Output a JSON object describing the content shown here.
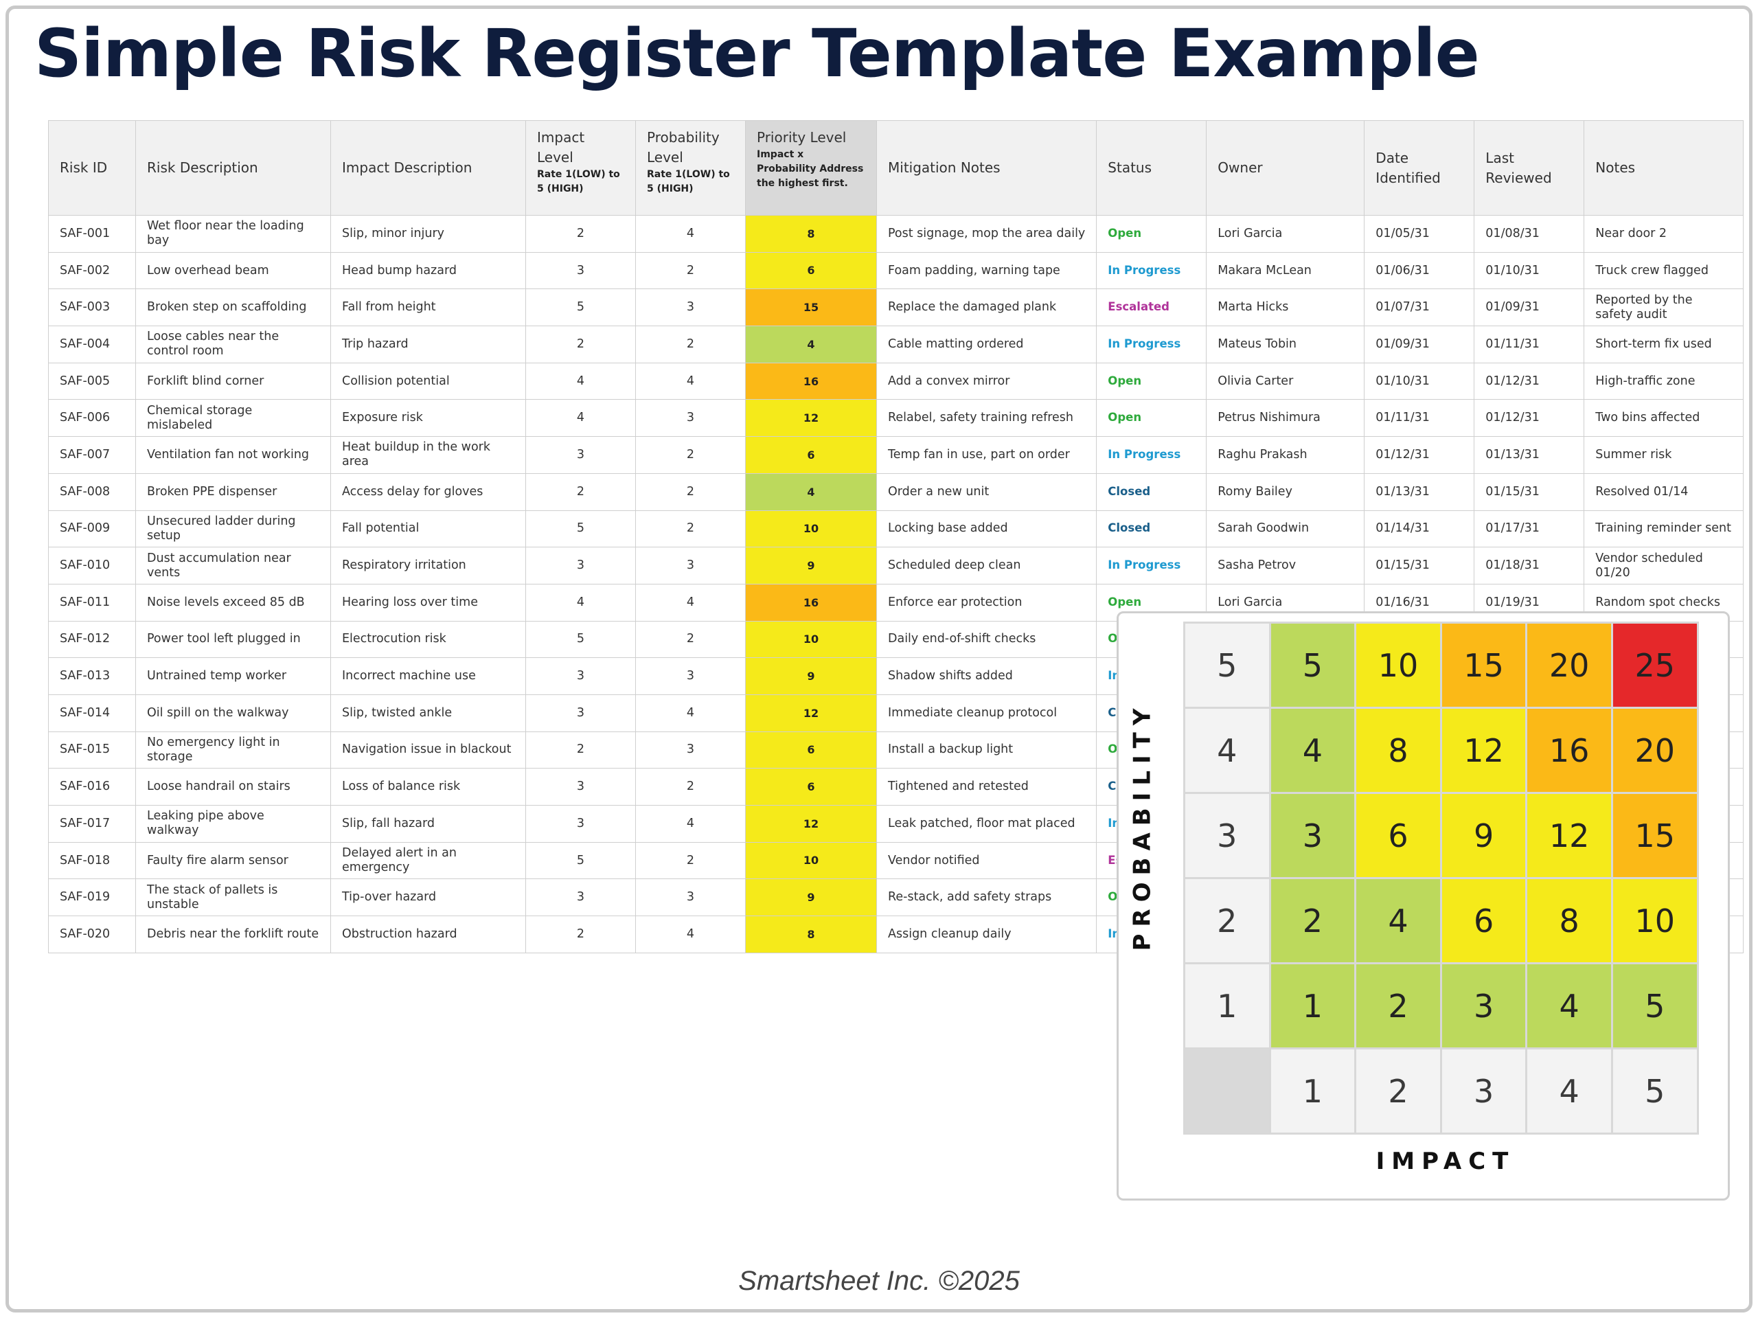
{
  "title": "Simple Risk Register Template Example",
  "columns": {
    "risk_id": "Risk ID",
    "risk_description": "Risk Description",
    "impact_description": "Impact Description",
    "impact_level": "Impact Level",
    "impact_level_sub": "Rate 1(LOW) to 5 (HIGH)",
    "probability_level": "Probability Level",
    "probability_level_sub": "Rate 1(LOW) to 5 (HIGH)",
    "priority_level": "Priority Level",
    "priority_level_sub": "Impact x Probability Address the highest first.",
    "mitigation_notes": "Mitigation Notes",
    "status": "Status",
    "owner": "Owner",
    "date_identified": "Date Identified",
    "last_reviewed": "Last Reviewed",
    "notes": "Notes"
  },
  "status_colors": {
    "Open": "#2eaa3c",
    "In Progress": "#1e9ad0",
    "Escalated": "#b0339a",
    "Closed": "#1a5f8a"
  },
  "priority_colors": {
    "green": "#bcd95c",
    "yellow": "#f5ea1a",
    "orange": "#fbb917",
    "red": "#e5282a"
  },
  "rows": [
    {
      "id": "SAF-001",
      "risk": "Wet floor near the loading bay",
      "impact": "Slip, minor injury",
      "impact_level": "2",
      "probability": "4",
      "priority": "8",
      "mitigation": "Post signage, mop the area daily",
      "status": "Open",
      "owner": "Lori Garcia",
      "date_identified": "01/05/31",
      "last_reviewed": "01/08/31",
      "notes": "Near door 2"
    },
    {
      "id": "SAF-002",
      "risk": "Low overhead beam",
      "impact": "Head bump hazard",
      "impact_level": "3",
      "probability": "2",
      "priority": "6",
      "mitigation": "Foam padding, warning tape",
      "status": "In Progress",
      "owner": "Makara McLean",
      "date_identified": "01/06/31",
      "last_reviewed": "01/10/31",
      "notes": "Truck crew flagged"
    },
    {
      "id": "SAF-003",
      "risk": "Broken step on scaffolding",
      "impact": "Fall from height",
      "impact_level": "5",
      "probability": "3",
      "priority": "15",
      "mitigation": "Replace the damaged plank",
      "status": "Escalated",
      "owner": "Marta Hicks",
      "date_identified": "01/07/31",
      "last_reviewed": "01/09/31",
      "notes": "Reported by the safety audit"
    },
    {
      "id": "SAF-004",
      "risk": "Loose cables near the control room",
      "impact": "Trip hazard",
      "impact_level": "2",
      "probability": "2",
      "priority": "4",
      "mitigation": "Cable matting ordered",
      "status": "In Progress",
      "owner": "Mateus Tobin",
      "date_identified": "01/09/31",
      "last_reviewed": "01/11/31",
      "notes": "Short-term fix used"
    },
    {
      "id": "SAF-005",
      "risk": "Forklift blind corner",
      "impact": "Collision potential",
      "impact_level": "4",
      "probability": "4",
      "priority": "16",
      "mitigation": "Add a convex mirror",
      "status": "Open",
      "owner": "Olivia Carter",
      "date_identified": "01/10/31",
      "last_reviewed": "01/12/31",
      "notes": "High-traffic zone"
    },
    {
      "id": "SAF-006",
      "risk": "Chemical storage mislabeled",
      "impact": "Exposure risk",
      "impact_level": "4",
      "probability": "3",
      "priority": "12",
      "mitigation": "Relabel, safety training refresh",
      "status": "Open",
      "owner": "Petrus Nishimura",
      "date_identified": "01/11/31",
      "last_reviewed": "01/12/31",
      "notes": "Two bins affected"
    },
    {
      "id": "SAF-007",
      "risk": "Ventilation fan not working",
      "impact": "Heat buildup in the work area",
      "impact_level": "3",
      "probability": "2",
      "priority": "6",
      "mitigation": "Temp fan in use, part on order",
      "status": "In Progress",
      "owner": "Raghu Prakash",
      "date_identified": "01/12/31",
      "last_reviewed": "01/13/31",
      "notes": "Summer risk"
    },
    {
      "id": "SAF-008",
      "risk": "Broken PPE dispenser",
      "impact": "Access delay for gloves",
      "impact_level": "2",
      "probability": "2",
      "priority": "4",
      "mitigation": "Order a new unit",
      "status": "Closed",
      "owner": "Romy Bailey",
      "date_identified": "01/13/31",
      "last_reviewed": "01/15/31",
      "notes": "Resolved 01/14"
    },
    {
      "id": "SAF-009",
      "risk": "Unsecured ladder during setup",
      "impact": "Fall potential",
      "impact_level": "5",
      "probability": "2",
      "priority": "10",
      "mitigation": "Locking base added",
      "status": "Closed",
      "owner": "Sarah Goodwin",
      "date_identified": "01/14/31",
      "last_reviewed": "01/17/31",
      "notes": "Training reminder sent"
    },
    {
      "id": "SAF-010",
      "risk": "Dust accumulation near vents",
      "impact": "Respiratory irritation",
      "impact_level": "3",
      "probability": "3",
      "priority": "9",
      "mitigation": "Scheduled deep clean",
      "status": "In Progress",
      "owner": "Sasha Petrov",
      "date_identified": "01/15/31",
      "last_reviewed": "01/18/31",
      "notes": "Vendor scheduled 01/20"
    },
    {
      "id": "SAF-011",
      "risk": "Noise levels exceed 85 dB",
      "impact": "Hearing loss over time",
      "impact_level": "4",
      "probability": "4",
      "priority": "16",
      "mitigation": "Enforce ear protection",
      "status": "Open",
      "owner": "Lori Garcia",
      "date_identified": "01/16/31",
      "last_reviewed": "01/19/31",
      "notes": "Random spot checks"
    },
    {
      "id": "SAF-012",
      "risk": "Power tool left plugged in",
      "impact": "Electrocution risk",
      "impact_level": "5",
      "probability": "2",
      "priority": "10",
      "mitigation": "Daily end-of-shift checks",
      "status": "Op",
      "status_color": "#2eaa3c",
      "owner": "",
      "date_identified": "",
      "last_reviewed": "",
      "notes": ""
    },
    {
      "id": "SAF-013",
      "risk": "Untrained temp worker",
      "impact": "Incorrect machine use",
      "impact_level": "3",
      "probability": "3",
      "priority": "9",
      "mitigation": "Shadow shifts added",
      "status": "In P",
      "status_color": "#1e9ad0",
      "owner": "",
      "date_identified": "",
      "last_reviewed": "",
      "notes": ""
    },
    {
      "id": "SAF-014",
      "risk": "Oil spill on the walkway",
      "impact": "Slip, twisted ankle",
      "impact_level": "3",
      "probability": "4",
      "priority": "12",
      "mitigation": "Immediate cleanup protocol",
      "status": "Clo",
      "status_color": "#1a5f8a",
      "owner": "",
      "date_identified": "",
      "last_reviewed": "",
      "notes": ""
    },
    {
      "id": "SAF-015",
      "risk": "No emergency light in storage",
      "impact": "Navigation issue in blackout",
      "impact_level": "2",
      "probability": "3",
      "priority": "6",
      "mitigation": "Install a backup light",
      "status": "Op",
      "status_color": "#2eaa3c",
      "owner": "",
      "date_identified": "",
      "last_reviewed": "",
      "notes": ""
    },
    {
      "id": "SAF-016",
      "risk": "Loose handrail on stairs",
      "impact": "Loss of balance risk",
      "impact_level": "3",
      "probability": "2",
      "priority": "6",
      "mitigation": "Tightened and retested",
      "status": "Clo",
      "status_color": "#1a5f8a",
      "owner": "",
      "date_identified": "",
      "last_reviewed": "",
      "notes": ""
    },
    {
      "id": "SAF-017",
      "risk": "Leaking pipe above walkway",
      "impact": "Slip, fall hazard",
      "impact_level": "3",
      "probability": "4",
      "priority": "12",
      "mitigation": "Leak patched, floor mat placed",
      "status": "In P",
      "status_color": "#1e9ad0",
      "owner": "",
      "date_identified": "",
      "last_reviewed": "",
      "notes": ""
    },
    {
      "id": "SAF-018",
      "risk": "Faulty fire alarm sensor",
      "impact": "Delayed alert in an emergency",
      "impact_level": "5",
      "probability": "2",
      "priority": "10",
      "mitigation": "Vendor notified",
      "status": "Esc",
      "status_color": "#b0339a",
      "owner": "",
      "date_identified": "",
      "last_reviewed": "",
      "notes": ""
    },
    {
      "id": "SAF-019",
      "risk": "The stack of pallets is unstable",
      "impact": "Tip-over hazard",
      "impact_level": "3",
      "probability": "3",
      "priority": "9",
      "mitigation": "Re-stack, add safety straps",
      "status": "Op",
      "status_color": "#2eaa3c",
      "owner": "",
      "date_identified": "",
      "last_reviewed": "",
      "notes": ""
    },
    {
      "id": "SAF-020",
      "risk": "Debris near the forklift route",
      "impact": "Obstruction hazard",
      "impact_level": "2",
      "probability": "4",
      "priority": "8",
      "mitigation": "Assign cleanup daily",
      "status": "In P",
      "status_color": "#1e9ad0",
      "owner": "",
      "date_identified": "",
      "last_reviewed": "",
      "notes": ""
    }
  ],
  "matrix": {
    "probability_label": "PROBABILITY",
    "impact_label": "IMPACT",
    "rows": [
      {
        "probability": "5",
        "cells": [
          "5",
          "10",
          "15",
          "20",
          "25"
        ]
      },
      {
        "probability": "4",
        "cells": [
          "4",
          "8",
          "12",
          "16",
          "20"
        ]
      },
      {
        "probability": "3",
        "cells": [
          "3",
          "6",
          "9",
          "12",
          "15"
        ]
      },
      {
        "probability": "2",
        "cells": [
          "2",
          "4",
          "6",
          "8",
          "10"
        ]
      },
      {
        "probability": "1",
        "cells": [
          "1",
          "2",
          "3",
          "4",
          "5"
        ]
      }
    ],
    "impact_values": [
      "1",
      "2",
      "3",
      "4",
      "5"
    ]
  },
  "footer": "Smartsheet Inc. ©2025"
}
